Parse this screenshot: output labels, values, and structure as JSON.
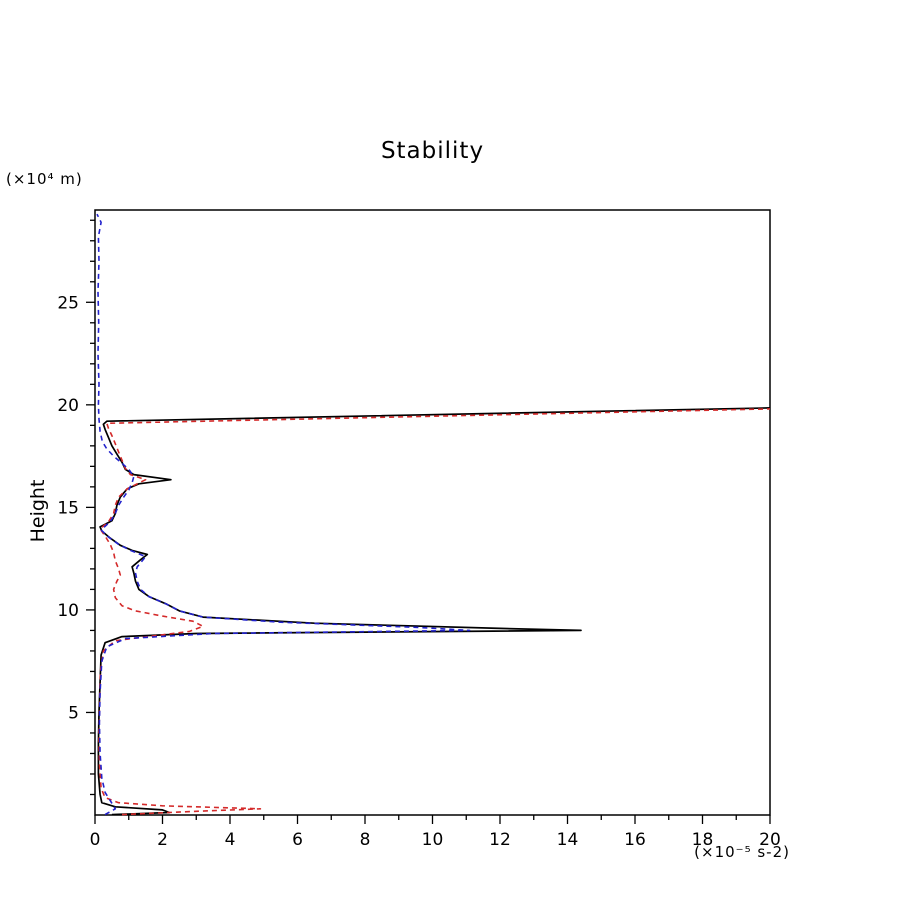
{
  "chart": {
    "title": "Stability",
    "ylabel": "Height",
    "y_unit": "(×10⁴ m)",
    "x_unit": "(×10⁻⁵ s-2)"
  },
  "chart_data": {
    "type": "line",
    "title": "Stability",
    "xlabel": "(×10⁻⁵ s-2)",
    "ylabel": "Height (×10⁴ m)",
    "xlim": [
      0,
      20
    ],
    "ylim": [
      0,
      29.5
    ],
    "x_major_ticks": [
      0,
      2,
      4,
      6,
      8,
      10,
      12,
      14,
      16,
      18,
      20
    ],
    "x_minor_step": 1,
    "y_major_ticks": [
      5,
      10,
      15,
      20,
      25
    ],
    "y_minor_step": 1,
    "grid": false,
    "legend": null,
    "note": "vertical profile: x = stability value, y = height",
    "series": [
      {
        "name": "black-solid",
        "color": "#000000",
        "dash": null,
        "width": 1.7,
        "points": [
          [
            0.5,
            0.02
          ],
          [
            2.2,
            0.12
          ],
          [
            2.0,
            0.25
          ],
          [
            0.6,
            0.4
          ],
          [
            0.2,
            0.6
          ],
          [
            0.15,
            1.0
          ],
          [
            0.1,
            2.0
          ],
          [
            0.1,
            3.5
          ],
          [
            0.12,
            5.0
          ],
          [
            0.15,
            6.5
          ],
          [
            0.18,
            7.8
          ],
          [
            0.3,
            8.4
          ],
          [
            0.8,
            8.7
          ],
          [
            3.0,
            8.85
          ],
          [
            14.4,
            9.0
          ],
          [
            12.0,
            9.1
          ],
          [
            6.5,
            9.35
          ],
          [
            3.2,
            9.65
          ],
          [
            2.5,
            9.95
          ],
          [
            2.1,
            10.3
          ],
          [
            1.6,
            10.65
          ],
          [
            1.3,
            11.0
          ],
          [
            1.2,
            11.4
          ],
          [
            1.15,
            11.8
          ],
          [
            1.1,
            12.1
          ],
          [
            1.35,
            12.45
          ],
          [
            1.55,
            12.7
          ],
          [
            1.1,
            12.9
          ],
          [
            0.75,
            13.15
          ],
          [
            0.45,
            13.5
          ],
          [
            0.2,
            13.85
          ],
          [
            0.15,
            14.05
          ],
          [
            0.5,
            14.35
          ],
          [
            0.6,
            14.7
          ],
          [
            0.65,
            15.1
          ],
          [
            0.75,
            15.5
          ],
          [
            0.95,
            15.9
          ],
          [
            1.3,
            16.15
          ],
          [
            2.25,
            16.35
          ],
          [
            1.15,
            16.6
          ],
          [
            0.9,
            16.85
          ],
          [
            0.8,
            17.2
          ],
          [
            0.65,
            17.6
          ],
          [
            0.5,
            18.0
          ],
          [
            0.4,
            18.4
          ],
          [
            0.3,
            18.8
          ],
          [
            0.25,
            19.05
          ],
          [
            0.35,
            19.2
          ],
          [
            20.0,
            19.85
          ]
        ]
      },
      {
        "name": "red-dashed",
        "color": "#d42a2a",
        "dash": "5 4",
        "width": 1.6,
        "points": [
          [
            0.8,
            0.02
          ],
          [
            3.0,
            0.18
          ],
          [
            4.9,
            0.3
          ],
          [
            2.0,
            0.45
          ],
          [
            0.7,
            0.6
          ],
          [
            0.3,
            0.85
          ],
          [
            0.18,
            1.3
          ],
          [
            0.13,
            2.5
          ],
          [
            0.12,
            4.0
          ],
          [
            0.14,
            5.5
          ],
          [
            0.16,
            7.0
          ],
          [
            0.25,
            8.0
          ],
          [
            0.6,
            8.5
          ],
          [
            1.8,
            8.75
          ],
          [
            2.8,
            8.95
          ],
          [
            3.2,
            9.2
          ],
          [
            2.9,
            9.45
          ],
          [
            2.0,
            9.7
          ],
          [
            1.2,
            9.95
          ],
          [
            0.8,
            10.2
          ],
          [
            0.6,
            10.6
          ],
          [
            0.55,
            11.0
          ],
          [
            0.65,
            11.4
          ],
          [
            0.75,
            11.7
          ],
          [
            0.7,
            12.0
          ],
          [
            0.6,
            12.4
          ],
          [
            0.55,
            12.8
          ],
          [
            0.45,
            13.2
          ],
          [
            0.3,
            13.6
          ],
          [
            0.15,
            13.95
          ],
          [
            0.4,
            14.3
          ],
          [
            0.55,
            14.7
          ],
          [
            0.6,
            15.1
          ],
          [
            0.7,
            15.5
          ],
          [
            0.95,
            15.9
          ],
          [
            1.25,
            16.15
          ],
          [
            1.5,
            16.35
          ],
          [
            1.05,
            16.6
          ],
          [
            0.9,
            16.9
          ],
          [
            0.8,
            17.3
          ],
          [
            0.7,
            17.7
          ],
          [
            0.6,
            18.1
          ],
          [
            0.5,
            18.5
          ],
          [
            0.4,
            18.85
          ],
          [
            0.35,
            19.1
          ],
          [
            20.0,
            19.8
          ]
        ]
      },
      {
        "name": "blue-dashed",
        "color": "#2222cc",
        "dash": "5 4",
        "width": 1.6,
        "points": [
          [
            0.3,
            0.02
          ],
          [
            0.6,
            0.3
          ],
          [
            0.45,
            0.7
          ],
          [
            0.3,
            1.1
          ],
          [
            0.2,
            1.8
          ],
          [
            0.15,
            3.0
          ],
          [
            0.13,
            4.5
          ],
          [
            0.15,
            6.0
          ],
          [
            0.2,
            7.5
          ],
          [
            0.35,
            8.2
          ],
          [
            0.9,
            8.6
          ],
          [
            3.5,
            8.85
          ],
          [
            11.1,
            9.0
          ],
          [
            9.5,
            9.15
          ],
          [
            5.5,
            9.4
          ],
          [
            3.2,
            9.65
          ],
          [
            2.5,
            9.95
          ],
          [
            2.1,
            10.3
          ],
          [
            1.6,
            10.65
          ],
          [
            1.35,
            11.0
          ],
          [
            1.25,
            11.4
          ],
          [
            1.2,
            11.8
          ],
          [
            1.25,
            12.1
          ],
          [
            1.4,
            12.4
          ],
          [
            1.5,
            12.6
          ],
          [
            1.05,
            12.9
          ],
          [
            0.7,
            13.2
          ],
          [
            0.4,
            13.55
          ],
          [
            0.18,
            13.9
          ],
          [
            0.45,
            14.3
          ],
          [
            0.6,
            14.7
          ],
          [
            0.7,
            15.1
          ],
          [
            0.85,
            15.5
          ],
          [
            1.0,
            15.85
          ],
          [
            1.1,
            16.2
          ],
          [
            1.15,
            16.5
          ],
          [
            1.0,
            16.85
          ],
          [
            0.8,
            17.15
          ],
          [
            0.55,
            17.5
          ],
          [
            0.35,
            17.85
          ],
          [
            0.22,
            18.2
          ],
          [
            0.15,
            18.7
          ],
          [
            0.12,
            19.3
          ],
          [
            0.1,
            20.0
          ],
          [
            0.12,
            21.0
          ],
          [
            0.09,
            22.5
          ],
          [
            0.11,
            24.0
          ],
          [
            0.09,
            25.5
          ],
          [
            0.12,
            27.0
          ],
          [
            0.1,
            28.2
          ],
          [
            0.18,
            28.9
          ],
          [
            0.06,
            29.3
          ]
        ]
      }
    ]
  }
}
